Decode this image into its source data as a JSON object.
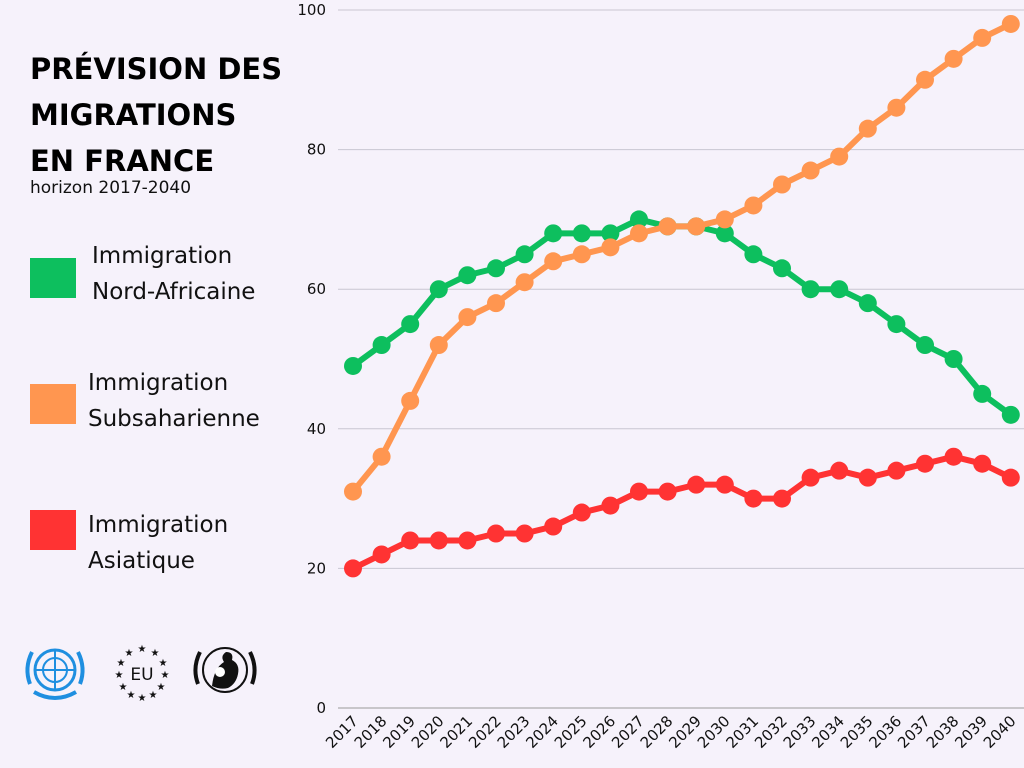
{
  "title_lines": [
    "PRÉVISION DES",
    "MIGRATIONS",
    "EN FRANCE"
  ],
  "subtitle": "horizon 2017-2040",
  "logos": [
    {
      "icon": "un-emblem-icon",
      "text": ""
    },
    {
      "icon": "eu-stars-icon",
      "text": "EU"
    },
    {
      "icon": "unicef-emblem-icon",
      "text": ""
    }
  ],
  "chart_data": {
    "type": "line",
    "title": "PRÉVISION DES MIGRATIONS EN FRANCE",
    "subtitle": "horizon 2017-2040",
    "xlabel": "",
    "ylabel": "",
    "ylim": [
      0,
      100
    ],
    "yticks": [
      0,
      20,
      40,
      60,
      80,
      100
    ],
    "grid": true,
    "legend_placement": "left",
    "categories": [
      "2017",
      "2018",
      "2019",
      "2020",
      "2021",
      "2022",
      "2023",
      "2024",
      "2025",
      "2026",
      "2027",
      "2028",
      "2029",
      "2030",
      "2031",
      "2032",
      "2033",
      "2034",
      "2035",
      "2036",
      "2037",
      "2038",
      "2039",
      "2040"
    ],
    "series": [
      {
        "name": "Immigration Nord-Africaine",
        "label_lines": [
          "Immigration",
          "Nord-Africaine"
        ],
        "color": "#0dbf5e",
        "values": [
          49,
          52,
          55,
          60,
          62,
          63,
          65,
          68,
          68,
          68,
          70,
          69,
          69,
          68,
          65,
          63,
          60,
          60,
          58,
          55,
          52,
          50,
          45,
          42
        ]
      },
      {
        "name": "Immigration Subsaharienne",
        "label_lines": [
          "Immigration",
          "Subsaharienne"
        ],
        "color": "#ff9650",
        "values": [
          31,
          36,
          44,
          52,
          56,
          58,
          61,
          64,
          65,
          66,
          68,
          69,
          69,
          70,
          72,
          75,
          77,
          79,
          83,
          86,
          90,
          93,
          96,
          98
        ]
      },
      {
        "name": "Immigration Asiatique",
        "label_lines": [
          "Immigration",
          "Asiatique"
        ],
        "color": "#ff3333",
        "values": [
          20,
          22,
          24,
          24,
          24,
          25,
          25,
          26,
          28,
          29,
          31,
          31,
          32,
          32,
          30,
          30,
          33,
          34,
          33,
          34,
          35,
          36,
          35,
          33
        ]
      }
    ]
  }
}
